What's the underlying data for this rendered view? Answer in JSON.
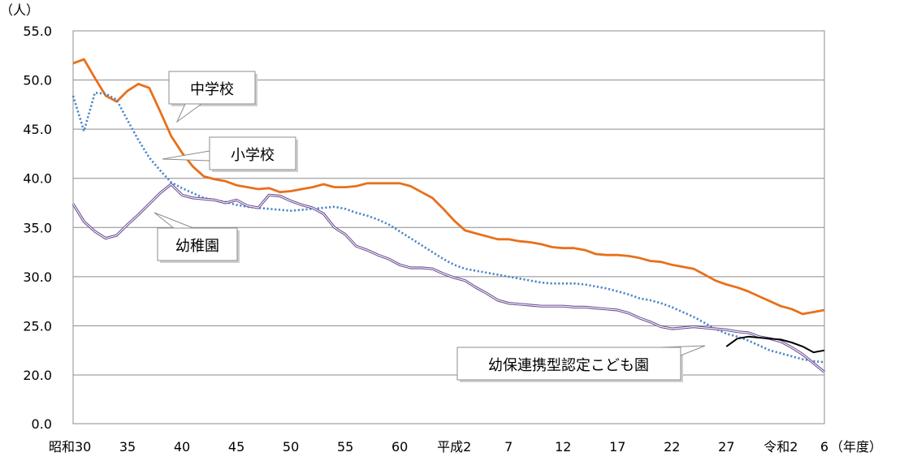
{
  "chart_data": {
    "type": "line",
    "title": "",
    "ylabel": "（人）",
    "xlabel": "（年度）",
    "ylim": [
      0,
      55
    ],
    "grid": true,
    "y_ticks": [
      {
        "value": 0,
        "label": "0.0"
      },
      {
        "value": 20,
        "label": "20.0"
      },
      {
        "value": 25,
        "label": "25.0"
      },
      {
        "value": 30,
        "label": "30.0"
      },
      {
        "value": 35,
        "label": "35.0"
      },
      {
        "value": 40,
        "label": "40.0"
      },
      {
        "value": 45,
        "label": "45.0"
      },
      {
        "value": 50,
        "label": "50.0"
      },
      {
        "value": 55,
        "label": "55.0"
      }
    ],
    "x_range": [
      1955,
      2024
    ],
    "x_ticks": [
      {
        "year": 1955,
        "label": "昭和30"
      },
      {
        "year": 1960,
        "label": "35"
      },
      {
        "year": 1965,
        "label": "40"
      },
      {
        "year": 1970,
        "label": "45"
      },
      {
        "year": 1975,
        "label": "50"
      },
      {
        "year": 1980,
        "label": "55"
      },
      {
        "year": 1985,
        "label": "60"
      },
      {
        "year": 1990,
        "label": "平成2"
      },
      {
        "year": 1995,
        "label": "7"
      },
      {
        "year": 2000,
        "label": "12"
      },
      {
        "year": 2005,
        "label": "17"
      },
      {
        "year": 2010,
        "label": "22"
      },
      {
        "year": 2015,
        "label": "27"
      },
      {
        "year": 2020,
        "label": "令和2"
      },
      {
        "year": 2024,
        "label": "6"
      }
    ],
    "series": [
      {
        "name": "中学校",
        "color": "#e8701a",
        "style": "solid",
        "x": [
          1955,
          1956,
          1957,
          1958,
          1959,
          1960,
          1961,
          1962,
          1963,
          1964,
          1965,
          1966,
          1967,
          1968,
          1969,
          1970,
          1971,
          1972,
          1973,
          1974,
          1975,
          1976,
          1977,
          1978,
          1979,
          1980,
          1981,
          1982,
          1983,
          1984,
          1985,
          1986,
          1987,
          1988,
          1989,
          1990,
          1991,
          1992,
          1993,
          1994,
          1995,
          1996,
          1997,
          1998,
          1999,
          2000,
          2001,
          2002,
          2003,
          2004,
          2005,
          2006,
          2007,
          2008,
          2009,
          2010,
          2011,
          2012,
          2013,
          2014,
          2015,
          2016,
          2017,
          2018,
          2019,
          2020,
          2021,
          2022,
          2023,
          2024
        ],
        "values": [
          51.7,
          52.1,
          50.2,
          48.4,
          47.8,
          48.9,
          49.6,
          49.2,
          46.8,
          44.3,
          42.6,
          41.2,
          40.2,
          39.9,
          39.7,
          39.3,
          39.1,
          38.9,
          39.0,
          38.6,
          38.7,
          38.9,
          39.1,
          39.4,
          39.1,
          39.1,
          39.2,
          39.5,
          39.5,
          39.5,
          39.5,
          39.2,
          38.6,
          38.0,
          36.9,
          35.7,
          34.7,
          34.4,
          34.1,
          33.8,
          33.8,
          33.6,
          33.5,
          33.3,
          33.0,
          32.9,
          32.9,
          32.7,
          32.3,
          32.2,
          32.2,
          32.1,
          31.9,
          31.6,
          31.5,
          31.2,
          31.0,
          30.8,
          30.2,
          29.6,
          29.2,
          28.9,
          28.5,
          28.0,
          27.5,
          27.0,
          26.7,
          26.2,
          26.4,
          26.6
        ]
      },
      {
        "name": "小学校",
        "color": "#4a86c8",
        "style": "dotted",
        "x": [
          1955,
          1956,
          1957,
          1958,
          1959,
          1960,
          1961,
          1962,
          1963,
          1964,
          1965,
          1966,
          1967,
          1968,
          1969,
          1970,
          1971,
          1972,
          1973,
          1974,
          1975,
          1976,
          1977,
          1978,
          1979,
          1980,
          1981,
          1982,
          1983,
          1984,
          1985,
          1986,
          1987,
          1988,
          1989,
          1990,
          1991,
          1992,
          1993,
          1994,
          1995,
          1996,
          1997,
          1998,
          1999,
          2000,
          2001,
          2002,
          2003,
          2004,
          2005,
          2006,
          2007,
          2008,
          2009,
          2010,
          2011,
          2012,
          2013,
          2014,
          2015,
          2016,
          2017,
          2018,
          2019,
          2020,
          2021,
          2022,
          2023,
          2024
        ],
        "values": [
          48.4,
          44.8,
          48.7,
          48.6,
          48.0,
          45.9,
          43.9,
          42.1,
          40.8,
          39.6,
          39.0,
          38.5,
          38.0,
          37.8,
          37.6,
          37.3,
          37.1,
          37.0,
          36.9,
          36.8,
          36.7,
          36.8,
          36.9,
          37.0,
          37.1,
          36.9,
          36.5,
          36.2,
          35.8,
          35.3,
          34.6,
          33.9,
          33.2,
          32.5,
          31.8,
          31.2,
          30.8,
          30.6,
          30.4,
          30.2,
          30.0,
          29.8,
          29.6,
          29.4,
          29.3,
          29.3,
          29.3,
          29.2,
          29.0,
          28.8,
          28.5,
          28.2,
          27.8,
          27.6,
          27.3,
          26.9,
          26.4,
          25.9,
          25.3,
          24.7,
          24.2,
          23.9,
          23.5,
          23.0,
          22.5,
          22.2,
          21.9,
          21.6,
          21.4,
          21.3
        ]
      },
      {
        "name": "幼稚園",
        "color": "#6a4c93",
        "style": "double",
        "x": [
          1955,
          1956,
          1957,
          1958,
          1959,
          1960,
          1961,
          1962,
          1963,
          1964,
          1965,
          1966,
          1967,
          1968,
          1969,
          1970,
          1971,
          1972,
          1973,
          1974,
          1975,
          1976,
          1977,
          1978,
          1979,
          1980,
          1981,
          1982,
          1983,
          1984,
          1985,
          1986,
          1987,
          1988,
          1989,
          1990,
          1991,
          1992,
          1993,
          1994,
          1995,
          1996,
          1997,
          1998,
          1999,
          2000,
          2001,
          2002,
          2003,
          2004,
          2005,
          2006,
          2007,
          2008,
          2009,
          2010,
          2011,
          2012,
          2013,
          2014,
          2015,
          2016,
          2017,
          2018,
          2019,
          2020,
          2021,
          2022,
          2023,
          2024
        ],
        "values": [
          37.4,
          35.6,
          34.6,
          33.9,
          34.2,
          35.3,
          36.3,
          37.4,
          38.5,
          39.4,
          38.3,
          38.0,
          37.9,
          37.8,
          37.5,
          37.8,
          37.2,
          37.0,
          38.3,
          38.2,
          37.7,
          37.3,
          37.0,
          36.4,
          35.0,
          34.3,
          33.1,
          32.7,
          32.2,
          31.8,
          31.2,
          30.9,
          30.9,
          30.8,
          30.3,
          29.9,
          29.6,
          28.9,
          28.3,
          27.6,
          27.3,
          27.2,
          27.1,
          27.0,
          27.0,
          27.0,
          26.9,
          26.9,
          26.8,
          26.7,
          26.6,
          26.3,
          25.8,
          25.4,
          24.9,
          24.7,
          24.8,
          24.9,
          24.8,
          24.7,
          24.6,
          24.4,
          24.3,
          23.9,
          23.7,
          23.4,
          22.8,
          22.1,
          21.2,
          20.3
        ]
      },
      {
        "name": "幼保連携型認定こども園",
        "color": "#000000",
        "style": "solid",
        "x": [
          2015,
          2016,
          2017,
          2018,
          2019,
          2020,
          2021,
          2022,
          2023,
          2024
        ],
        "values": [
          22.9,
          23.7,
          23.9,
          23.8,
          23.7,
          23.6,
          23.3,
          22.9,
          22.3,
          22.5
        ]
      }
    ],
    "callouts": [
      {
        "series": "中学校",
        "label": "中学校"
      },
      {
        "series": "小学校",
        "label": "小学校"
      },
      {
        "series": "幼稚園",
        "label": "幼稚園"
      },
      {
        "series": "幼保連携型認定こども園",
        "label": "幼保連携型認定こども園"
      }
    ]
  }
}
